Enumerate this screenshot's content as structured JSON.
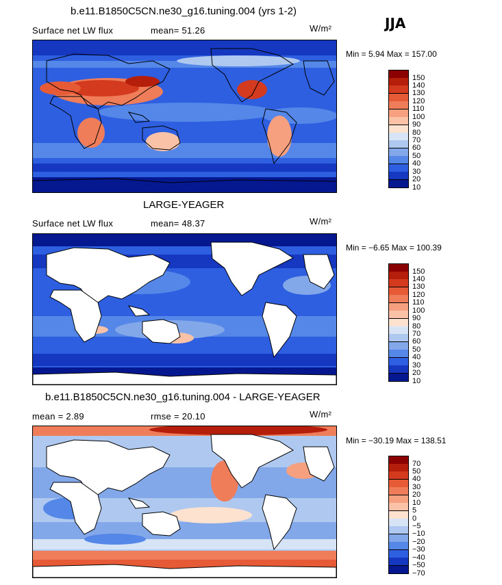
{
  "season": "JJA",
  "panels": [
    {
      "title": "b.e11.B1850C5CN.ne30_g16.tuning.004 (yrs 1-2)",
      "left_label": "Surface net LW flux",
      "middle_label": "mean=  51.26",
      "units": "W/m²",
      "range_text": "Min =    5.94  Max = 157.00",
      "colorbar": {
        "labels": [
          "150",
          "140",
          "130",
          "120",
          "110",
          "100",
          "90",
          "80",
          "70",
          "60",
          "50",
          "40",
          "30",
          "20",
          "10"
        ],
        "colors": [
          "#8b0000",
          "#b41e0a",
          "#d33a1e",
          "#e65a35",
          "#f07d5a",
          "#f6a080",
          "#fac3a8",
          "#fde2d0",
          "#d6e4f6",
          "#aec8f0",
          "#82a8ea",
          "#5487e8",
          "#2e5fe0",
          "#1638c0",
          "#061890"
        ]
      }
    },
    {
      "title": "LARGE-YEAGER",
      "left_label": "Surface net LW flux",
      "middle_label": "mean=  48.37",
      "units": "W/m²",
      "range_text": "Min =  −6.65  Max = 100.39",
      "colorbar": {
        "labels": [
          "150",
          "140",
          "130",
          "120",
          "110",
          "100",
          "90",
          "80",
          "70",
          "60",
          "50",
          "40",
          "30",
          "20",
          "10"
        ],
        "colors": [
          "#8b0000",
          "#b41e0a",
          "#d33a1e",
          "#e65a35",
          "#f07d5a",
          "#f6a080",
          "#fac3a8",
          "#fde2d0",
          "#d6e4f6",
          "#aec8f0",
          "#82a8ea",
          "#5487e8",
          "#2e5fe0",
          "#1638c0",
          "#061890"
        ]
      }
    },
    {
      "title": "b.e11.B1850C5CN.ne30_g16.tuning.004 - LARGE-YEAGER",
      "left_label": "mean =    2.89",
      "middle_label": "rmse =   20.10",
      "units": "W/m²",
      "range_text": "Min = −30.19  Max = 138.51",
      "colorbar": {
        "labels": [
          "70",
          "50",
          "40",
          "30",
          "20",
          "10",
          "5",
          "0",
          "−5",
          "−10",
          "−20",
          "−30",
          "−40",
          "−50",
          "−70"
        ],
        "colors": [
          "#8b0000",
          "#b41e0a",
          "#d33a1e",
          "#e65a35",
          "#f07d5a",
          "#f6a080",
          "#fac3a8",
          "#fde2d0",
          "#d6e4f6",
          "#aec8f0",
          "#82a8ea",
          "#5487e8",
          "#2e5fe0",
          "#1638c0",
          "#061890"
        ]
      }
    }
  ],
  "chart_data": [
    {
      "type": "heatmap",
      "title": "b.e11.B1850C5CN.ne30_g16.tuning.004 (yrs 1-2)",
      "variable": "Surface net LW flux",
      "units": "W/m²",
      "mean": 51.26,
      "min": 5.94,
      "max": 157.0,
      "colorbar_levels": [
        10,
        20,
        30,
        40,
        50,
        60,
        70,
        80,
        90,
        100,
        110,
        120,
        130,
        140,
        150
      ]
    },
    {
      "type": "heatmap",
      "title": "LARGE-YEAGER",
      "variable": "Surface net LW flux",
      "units": "W/m²",
      "mean": 48.37,
      "min": -6.65,
      "max": 100.39,
      "colorbar_levels": [
        10,
        20,
        30,
        40,
        50,
        60,
        70,
        80,
        90,
        100,
        110,
        120,
        130,
        140,
        150
      ]
    },
    {
      "type": "heatmap",
      "title": "b.e11.B1850C5CN.ne30_g16.tuning.004 - LARGE-YEAGER",
      "units": "W/m²",
      "mean": 2.89,
      "rmse": 20.1,
      "min": -30.19,
      "max": 138.51,
      "colorbar_levels": [
        -70,
        -50,
        -40,
        -30,
        -20,
        -10,
        -5,
        0,
        5,
        10,
        20,
        30,
        40,
        50,
        70
      ]
    }
  ]
}
